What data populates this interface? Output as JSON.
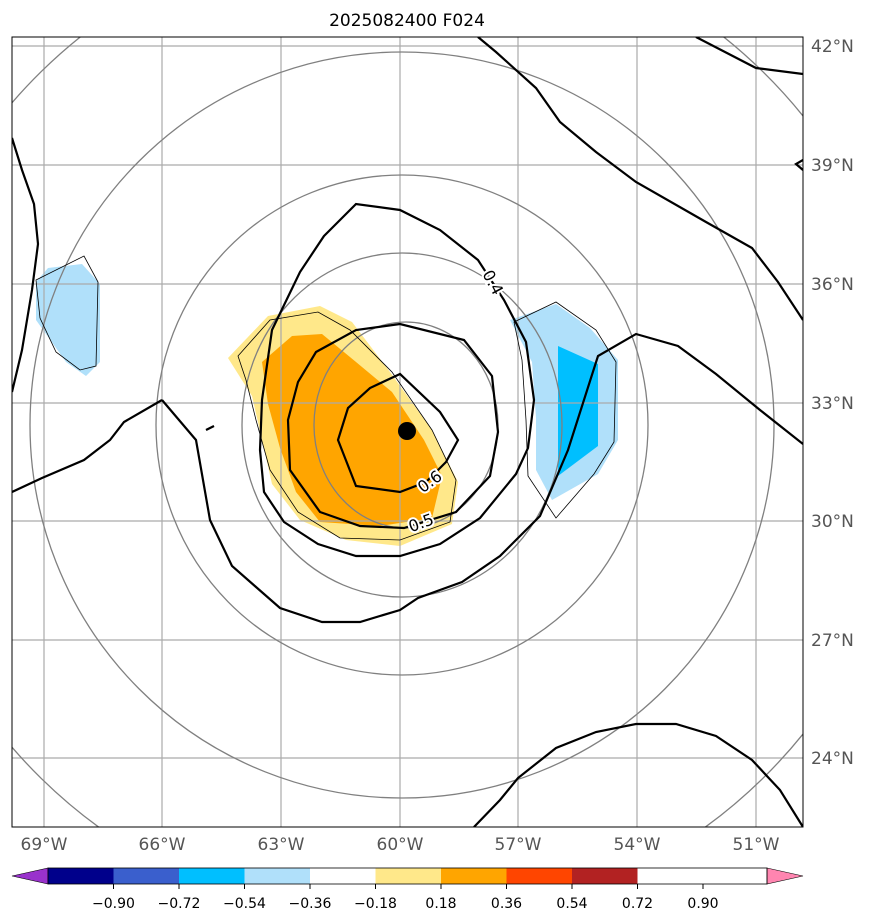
{
  "title": "2025082400 F024",
  "lat_labels": [
    "42°N",
    "39°N",
    "36°N",
    "33°N",
    "30°N",
    "27°N",
    "24°N"
  ],
  "lon_labels": [
    "69°W",
    "66°W",
    "63°W",
    "60°W",
    "57°W",
    "54°W",
    "51°W"
  ],
  "contour_labels": [
    "0.4",
    "0.5",
    "0.6"
  ],
  "colorbar": {
    "ticks": [
      "−0.90",
      "−0.72",
      "−0.54",
      "−0.36",
      "−0.18",
      "0.18",
      "0.36",
      "0.54",
      "0.72",
      "0.90"
    ],
    "colors": [
      "#9932cc",
      "#00008b",
      "#3a5fcd",
      "#00bfff",
      "#b0e0fa",
      "#ffffff",
      "#ffe88a",
      "#ffa500",
      "#ff4500",
      "#b22222",
      "#ff85b0"
    ]
  },
  "storm_center": {
    "lat": 32.3,
    "lon": -59.8
  }
}
